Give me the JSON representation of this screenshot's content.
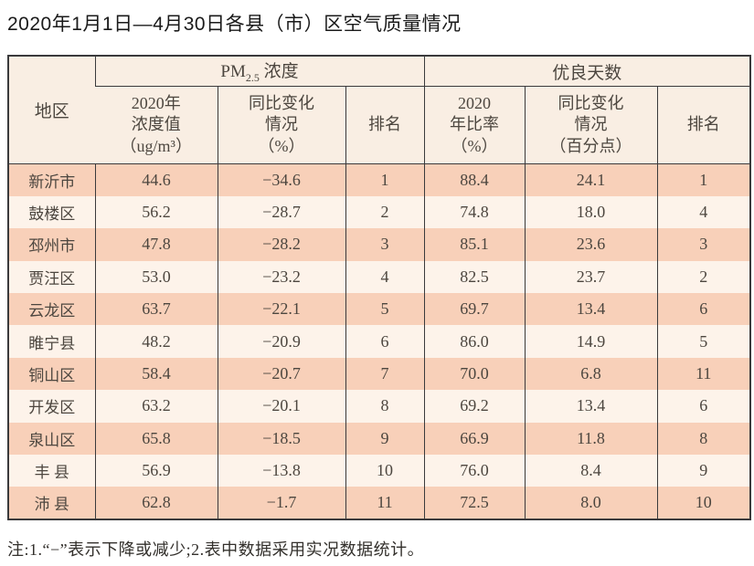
{
  "title": "2020年1月1日—4月30日各县（市）区空气质量情况",
  "note": "注:1.“−”表示下降或减少;2.表中数据采用实况数据统计。",
  "colors": {
    "row_stripe": "#f8d0b9",
    "row_alt": "#fdf3ea",
    "header_bg": "#f9eee3",
    "border": "#3a3a3c",
    "text": "#4c463f",
    "title_text": "#1a1a1a",
    "note_text": "#33302c"
  },
  "chart_data": {
    "type": "table",
    "title": "2020年1月1日—4月30日各县（市）区空气质量情况",
    "header": {
      "region": "地区",
      "pm25_group": {
        "prefix": "PM",
        "sub": "2.5",
        "suffix": " 浓度"
      },
      "good_days_group": "优良天数",
      "sub_headers": {
        "pm25_value": "2020年\n浓度值\n（ug/m³）",
        "pm25_change": "同比变化\n情况\n（%）",
        "pm25_rank": "排名",
        "good_ratio": "2020\n年比率\n（%）",
        "good_change": "同比变化\n情况\n（百分点）",
        "good_rank": "排名"
      }
    },
    "rows": [
      {
        "region": "新沂市",
        "pm25_value": "44.6",
        "pm25_change": "−34.6",
        "pm25_rank": "1",
        "good_ratio": "88.4",
        "good_change": "24.1",
        "good_rank": "1"
      },
      {
        "region": "鼓楼区",
        "pm25_value": "56.2",
        "pm25_change": "−28.7",
        "pm25_rank": "2",
        "good_ratio": "74.8",
        "good_change": "18.0",
        "good_rank": "4"
      },
      {
        "region": "邳州市",
        "pm25_value": "47.8",
        "pm25_change": "−28.2",
        "pm25_rank": "3",
        "good_ratio": "85.1",
        "good_change": "23.6",
        "good_rank": "3"
      },
      {
        "region": "贾汪区",
        "pm25_value": "53.0",
        "pm25_change": "−23.2",
        "pm25_rank": "4",
        "good_ratio": "82.5",
        "good_change": "23.7",
        "good_rank": "2"
      },
      {
        "region": "云龙区",
        "pm25_value": "63.7",
        "pm25_change": "−22.1",
        "pm25_rank": "5",
        "good_ratio": "69.7",
        "good_change": "13.4",
        "good_rank": "6"
      },
      {
        "region": "睢宁县",
        "pm25_value": "48.2",
        "pm25_change": "−20.9",
        "pm25_rank": "6",
        "good_ratio": "86.0",
        "good_change": "14.9",
        "good_rank": "5"
      },
      {
        "region": "铜山区",
        "pm25_value": "58.4",
        "pm25_change": "−20.7",
        "pm25_rank": "7",
        "good_ratio": "70.0",
        "good_change": "6.8",
        "good_rank": "11"
      },
      {
        "region": "开发区",
        "pm25_value": "63.2",
        "pm25_change": "−20.1",
        "pm25_rank": "8",
        "good_ratio": "69.2",
        "good_change": "13.4",
        "good_rank": "6"
      },
      {
        "region": "泉山区",
        "pm25_value": "65.8",
        "pm25_change": "−18.5",
        "pm25_rank": "9",
        "good_ratio": "66.9",
        "good_change": "11.8",
        "good_rank": "8"
      },
      {
        "region": "丰 县",
        "pm25_value": "56.9",
        "pm25_change": "−13.8",
        "pm25_rank": "10",
        "good_ratio": "76.0",
        "good_change": "8.4",
        "good_rank": "9"
      },
      {
        "region": "沛 县",
        "pm25_value": "62.8",
        "pm25_change": "−1.7",
        "pm25_rank": "11",
        "good_ratio": "72.5",
        "good_change": "8.0",
        "good_rank": "10"
      }
    ]
  }
}
